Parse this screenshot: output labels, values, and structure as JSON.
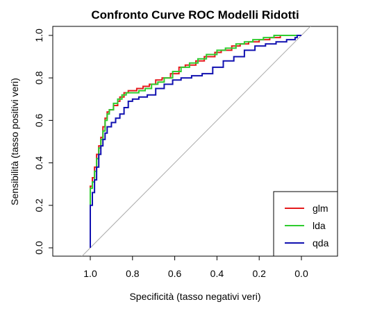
{
  "chart_data": {
    "type": "line",
    "title": "Confronto Curve ROC Modelli Ridotti",
    "xlabel": "Specificità  (tasso negativi veri)",
    "ylabel": "Sensibilità  (tasso positivi veri)",
    "xlim": [
      1.0,
      0.0
    ],
    "ylim": [
      0.0,
      1.0
    ],
    "x_reversed": true,
    "x_ticks": [
      1.0,
      0.8,
      0.6,
      0.4,
      0.2,
      0.0
    ],
    "x_tick_labels": [
      "1.0",
      "0.8",
      "0.6",
      "0.4",
      "0.2",
      "0.0"
    ],
    "y_ticks": [
      0.0,
      0.2,
      0.4,
      0.6,
      0.8,
      1.0
    ],
    "y_tick_labels": [
      "0.0",
      "0.2",
      "0.4",
      "0.6",
      "0.8",
      "1.0"
    ],
    "legend_position": "bottom-right",
    "reference_line": {
      "from": [
        1.0,
        0.0
      ],
      "to": [
        0.0,
        1.0
      ],
      "color": "#aaaaaa"
    },
    "series": [
      {
        "name": "glm",
        "color": "#e41a1c",
        "points": [
          [
            1.0,
            0.0
          ],
          [
            1.0,
            0.26
          ],
          [
            0.99,
            0.29
          ],
          [
            0.98,
            0.33
          ],
          [
            0.97,
            0.38
          ],
          [
            0.96,
            0.44
          ],
          [
            0.95,
            0.48
          ],
          [
            0.94,
            0.52
          ],
          [
            0.93,
            0.57
          ],
          [
            0.92,
            0.61
          ],
          [
            0.91,
            0.64
          ],
          [
            0.89,
            0.65
          ],
          [
            0.87,
            0.67
          ],
          [
            0.86,
            0.69
          ],
          [
            0.84,
            0.71
          ],
          [
            0.82,
            0.73
          ],
          [
            0.78,
            0.74
          ],
          [
            0.75,
            0.75
          ],
          [
            0.72,
            0.76
          ],
          [
            0.69,
            0.77
          ],
          [
            0.66,
            0.79
          ],
          [
            0.62,
            0.8
          ],
          [
            0.58,
            0.82
          ],
          [
            0.55,
            0.85
          ],
          [
            0.5,
            0.86
          ],
          [
            0.46,
            0.88
          ],
          [
            0.41,
            0.9
          ],
          [
            0.38,
            0.92
          ],
          [
            0.33,
            0.93
          ],
          [
            0.29,
            0.95
          ],
          [
            0.25,
            0.96
          ],
          [
            0.2,
            0.97
          ],
          [
            0.15,
            0.98
          ],
          [
            0.1,
            0.99
          ],
          [
            0.05,
            1.0
          ],
          [
            0.0,
            1.0
          ]
        ]
      },
      {
        "name": "lda",
        "color": "#2ecc2e",
        "points": [
          [
            1.0,
            0.0
          ],
          [
            1.0,
            0.24
          ],
          [
            0.99,
            0.28
          ],
          [
            0.98,
            0.31
          ],
          [
            0.97,
            0.36
          ],
          [
            0.96,
            0.42
          ],
          [
            0.95,
            0.47
          ],
          [
            0.94,
            0.51
          ],
          [
            0.93,
            0.55
          ],
          [
            0.92,
            0.6
          ],
          [
            0.91,
            0.63
          ],
          [
            0.89,
            0.65
          ],
          [
            0.87,
            0.68
          ],
          [
            0.85,
            0.7
          ],
          [
            0.83,
            0.72
          ],
          [
            0.8,
            0.73
          ],
          [
            0.77,
            0.73
          ],
          [
            0.74,
            0.74
          ],
          [
            0.71,
            0.75
          ],
          [
            0.68,
            0.77
          ],
          [
            0.65,
            0.78
          ],
          [
            0.61,
            0.8
          ],
          [
            0.57,
            0.83
          ],
          [
            0.53,
            0.85
          ],
          [
            0.49,
            0.87
          ],
          [
            0.45,
            0.89
          ],
          [
            0.4,
            0.91
          ],
          [
            0.36,
            0.93
          ],
          [
            0.31,
            0.94
          ],
          [
            0.27,
            0.96
          ],
          [
            0.23,
            0.97
          ],
          [
            0.18,
            0.98
          ],
          [
            0.13,
            0.99
          ],
          [
            0.08,
            1.0
          ],
          [
            0.0,
            1.0
          ]
        ]
      },
      {
        "name": "qda",
        "color": "#1010b0",
        "points": [
          [
            1.0,
            0.0
          ],
          [
            1.0,
            0.14
          ],
          [
            0.99,
            0.2
          ],
          [
            0.98,
            0.26
          ],
          [
            0.97,
            0.32
          ],
          [
            0.96,
            0.38
          ],
          [
            0.95,
            0.44
          ],
          [
            0.94,
            0.48
          ],
          [
            0.93,
            0.51
          ],
          [
            0.92,
            0.54
          ],
          [
            0.9,
            0.57
          ],
          [
            0.88,
            0.59
          ],
          [
            0.86,
            0.61
          ],
          [
            0.84,
            0.63
          ],
          [
            0.82,
            0.66
          ],
          [
            0.8,
            0.69
          ],
          [
            0.77,
            0.7
          ],
          [
            0.73,
            0.71
          ],
          [
            0.69,
            0.72
          ],
          [
            0.65,
            0.75
          ],
          [
            0.61,
            0.77
          ],
          [
            0.57,
            0.79
          ],
          [
            0.52,
            0.8
          ],
          [
            0.47,
            0.81
          ],
          [
            0.42,
            0.82
          ],
          [
            0.37,
            0.85
          ],
          [
            0.32,
            0.88
          ],
          [
            0.27,
            0.9
          ],
          [
            0.22,
            0.93
          ],
          [
            0.17,
            0.95
          ],
          [
            0.12,
            0.96
          ],
          [
            0.07,
            0.97
          ],
          [
            0.03,
            0.98
          ],
          [
            0.02,
            0.99
          ],
          [
            0.0,
            1.0
          ]
        ]
      }
    ]
  }
}
